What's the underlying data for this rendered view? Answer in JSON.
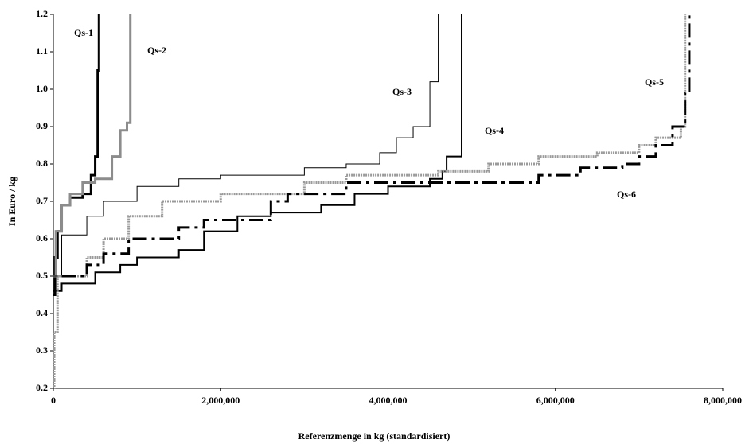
{
  "chart_data": {
    "type": "step",
    "x_label": "Referenzmenge in kg (standardisiert)",
    "y_label": "In Euro / kg",
    "xlim": [
      0,
      8000000
    ],
    "xticks": [
      0,
      {
        "value": 2000000,
        "label": "2,000,000"
      },
      {
        "value": 4000000,
        "label": "4,000,000"
      },
      {
        "value": 6000000,
        "label": "6,000,000"
      },
      {
        "value": 8000000,
        "label": "8,000,000"
      }
    ],
    "ylim": [
      0.2,
      1.2
    ],
    "yticks": [
      0.2,
      0.3,
      0.4,
      0.5,
      0.6,
      0.7,
      0.8,
      0.9,
      {
        "value": 1.0,
        "label": "1.0"
      },
      1.1,
      1.2
    ],
    "grid": false,
    "series": [
      {
        "name": "Qs-1",
        "color": "#000000",
        "width": 3,
        "dash": "solid",
        "x": [
          0,
          20000,
          50000,
          100000,
          200000,
          350000,
          450000,
          500000,
          530000,
          545000
        ],
        "values": [
          0.45,
          0.55,
          0.62,
          0.69,
          0.71,
          0.72,
          0.77,
          0.82,
          1.05,
          1.2
        ]
      },
      {
        "name": "Qs-2",
        "color": "#8c8c8c",
        "width": 3,
        "dash": "solid",
        "x": [
          0,
          30000,
          100000,
          200000,
          350000,
          500000,
          700000,
          800000,
          880000,
          920000
        ],
        "values": [
          0.5,
          0.62,
          0.69,
          0.72,
          0.75,
          0.76,
          0.82,
          0.89,
          0.91,
          1.2
        ]
      },
      {
        "name": "Qs-3",
        "color": "#000000",
        "width": 1,
        "dash": "solid",
        "x": [
          0,
          100000,
          400000,
          600000,
          1000000,
          1500000,
          2000000,
          3000000,
          3500000,
          3900000,
          4100000,
          4300000,
          4500000,
          4600000
        ],
        "values": [
          0.5,
          0.61,
          0.66,
          0.7,
          0.74,
          0.76,
          0.77,
          0.79,
          0.8,
          0.83,
          0.87,
          0.9,
          1.02,
          1.2
        ]
      },
      {
        "name": "Qs-4",
        "color": "#000000",
        "width": 2,
        "dash": "solid",
        "x": [
          0,
          100000,
          500000,
          800000,
          1000000,
          1500000,
          1800000,
          2200000,
          2600000,
          3200000,
          3600000,
          4000000,
          4500000,
          4650000,
          4700000,
          4880000
        ],
        "values": [
          0.46,
          0.48,
          0.51,
          0.53,
          0.55,
          0.57,
          0.62,
          0.66,
          0.67,
          0.69,
          0.72,
          0.74,
          0.76,
          0.78,
          0.82,
          1.2
        ]
      },
      {
        "name": "Qs-5",
        "color": "#9a9a9a",
        "width": 3,
        "dash": "dotted",
        "x": [
          0,
          10000,
          50000,
          400000,
          600000,
          900000,
          1300000,
          2000000,
          3000000,
          3500000,
          4600000,
          5200000,
          5800000,
          6500000,
          7000000,
          7200000,
          7500000,
          7550000
        ],
        "values": [
          0.2,
          0.35,
          0.5,
          0.55,
          0.6,
          0.66,
          0.7,
          0.72,
          0.75,
          0.77,
          0.78,
          0.8,
          0.82,
          0.83,
          0.85,
          0.87,
          0.9,
          1.2
        ]
      },
      {
        "name": "Qs-6",
        "color": "#000000",
        "width": 3,
        "dash": "dashdot",
        "x": [
          100000,
          400000,
          600000,
          900000,
          1500000,
          1800000,
          2600000,
          2800000,
          3500000,
          5800000,
          6300000,
          6800000,
          7000000,
          7200000,
          7400000,
          7550000,
          7600000
        ],
        "values": [
          0.5,
          0.53,
          0.56,
          0.6,
          0.63,
          0.65,
          0.7,
          0.72,
          0.75,
          0.77,
          0.79,
          0.8,
          0.82,
          0.85,
          0.9,
          0.99,
          1.2
        ]
      }
    ]
  }
}
